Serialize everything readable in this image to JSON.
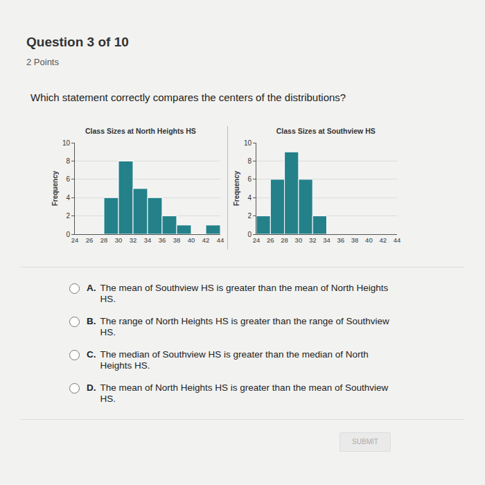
{
  "header": {
    "question_number": "Question 3 of 10",
    "points": "2 Points"
  },
  "question": "Which statement correctly compares the centers of the distributions?",
  "chart_data": [
    {
      "type": "histogram",
      "title": "Class Sizes at North Heights HS",
      "y_label": "Frequency",
      "bins": [
        28,
        30,
        32,
        34,
        36,
        38,
        40,
        42,
        44
      ],
      "values": [
        4,
        8,
        5,
        4,
        2,
        1,
        0,
        1
      ],
      "color": "#24818a",
      "xlim": [
        24,
        44
      ],
      "xticks": [
        24,
        26,
        28,
        30,
        32,
        34,
        36,
        38,
        40,
        42,
        44
      ],
      "ylim": [
        0,
        10
      ],
      "yticks": [
        0,
        2,
        4,
        6,
        8,
        10
      ],
      "grid": true
    },
    {
      "type": "histogram",
      "title": "Class Sizes at Southview HS",
      "y_label": "Frequency",
      "bins": [
        24,
        26,
        28,
        30,
        32,
        34
      ],
      "values": [
        2,
        6,
        9,
        6,
        2
      ],
      "color": "#24818a",
      "xlim": [
        24,
        44
      ],
      "xticks": [
        24,
        26,
        28,
        30,
        32,
        34,
        36,
        38,
        40,
        42,
        44
      ],
      "ylim": [
        0,
        10
      ],
      "yticks": [
        0,
        2,
        4,
        6,
        8,
        10
      ],
      "grid": true
    }
  ],
  "options": [
    {
      "letter": "A.",
      "text": "The mean of Southview HS is greater than the mean of North Heights HS."
    },
    {
      "letter": "B.",
      "text": "The range of North Heights HS is greater than the range of Southview HS."
    },
    {
      "letter": "C.",
      "text": "The median of Southview HS is greater than the median of North Heights HS."
    },
    {
      "letter": "D.",
      "text": "The mean of North Heights HS is greater than the mean of Southview HS."
    }
  ],
  "button": "SUBMIT"
}
